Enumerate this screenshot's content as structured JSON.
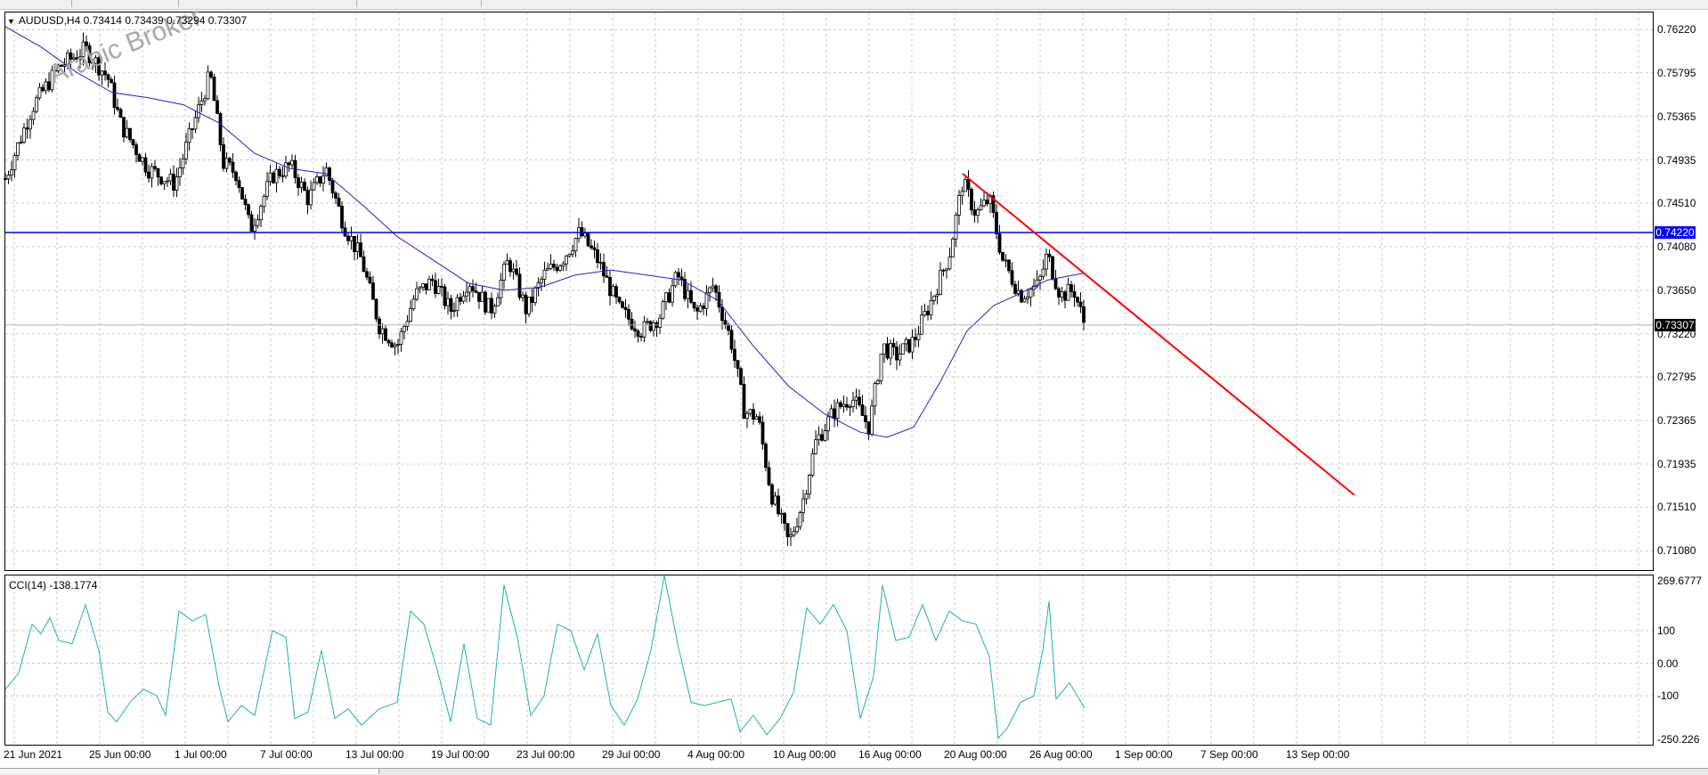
{
  "header": {
    "symbol_info": "AUDUSD,H4  0.73414 0.73439 0.73294 0.73307",
    "cci_label": "CCI(14) -138.1774"
  },
  "watermark": "Arabic Broker",
  "price_axis": [
    "0.76220",
    "0.75795",
    "0.75365",
    "0.74935",
    "0.74510",
    "0.74080",
    "0.73650",
    "0.73220",
    "0.72795",
    "0.72365",
    "0.71935",
    "0.71510",
    "0.71080"
  ],
  "tags": {
    "level": "0.74220",
    "current": "0.73307"
  },
  "cci_axis": [
    "269.6777",
    "100",
    "0.00",
    "-100",
    "-250.226"
  ],
  "date_axis": [
    "21 Jun 2021",
    "25 Jun 00:00",
    "1 Jul 00:00",
    "7 Jul 00:00",
    "13 Jul 00:00",
    "19 Jul 00:00",
    "23 Jul 00:00",
    "29 Jul 00:00",
    "4 Aug 00:00",
    "10 Aug 00:00",
    "16 Aug 00:00",
    "20 Aug 00:00",
    "26 Aug 00:00",
    "1 Sep 00:00",
    "7 Sep 00:00",
    "13 Sep 00:00"
  ],
  "colors": {
    "ma": "#1f1fd0",
    "level": "#0000ff",
    "trendline": "#ff0000",
    "cci": "#20b2aa",
    "grid": "#c8c8c8"
  },
  "chart_data": {
    "type": "candlestick",
    "symbol": "AUDUSD",
    "timeframe": "H4",
    "ohlc_last": {
      "open": 0.73414,
      "high": 0.73439,
      "low": 0.73294,
      "close": 0.73307
    },
    "close_path": [
      [
        0,
        0.7475
      ],
      [
        30,
        0.7545
      ],
      [
        60,
        0.7585
      ],
      [
        90,
        0.7603
      ],
      [
        115,
        0.7575
      ],
      [
        130,
        0.7528
      ],
      [
        160,
        0.7485
      ],
      [
        190,
        0.747
      ],
      [
        210,
        0.7525
      ],
      [
        230,
        0.7578
      ],
      [
        245,
        0.749
      ],
      [
        260,
        0.748
      ],
      [
        275,
        0.7425
      ],
      [
        300,
        0.7478
      ],
      [
        320,
        0.7488
      ],
      [
        340,
        0.7455
      ],
      [
        360,
        0.7485
      ],
      [
        380,
        0.743
      ],
      [
        400,
        0.7395
      ],
      [
        420,
        0.733
      ],
      [
        440,
        0.731
      ],
      [
        460,
        0.736
      ],
      [
        480,
        0.7375
      ],
      [
        500,
        0.7345
      ],
      [
        520,
        0.7375
      ],
      [
        545,
        0.7345
      ],
      [
        565,
        0.7395
      ],
      [
        585,
        0.7345
      ],
      [
        605,
        0.738
      ],
      [
        625,
        0.7395
      ],
      [
        645,
        0.7422
      ],
      [
        665,
        0.7395
      ],
      [
        690,
        0.7345
      ],
      [
        715,
        0.7325
      ],
      [
        735,
        0.734
      ],
      [
        755,
        0.738
      ],
      [
        775,
        0.734
      ],
      [
        795,
        0.737
      ],
      [
        815,
        0.7315
      ],
      [
        830,
        0.7245
      ],
      [
        845,
        0.724
      ],
      [
        860,
        0.7165
      ],
      [
        880,
        0.7115
      ],
      [
        895,
        0.7155
      ],
      [
        910,
        0.7215
      ],
      [
        930,
        0.7245
      ],
      [
        950,
        0.726
      ],
      [
        970,
        0.723
      ],
      [
        985,
        0.731
      ],
      [
        1000,
        0.73
      ],
      [
        1020,
        0.7315
      ],
      [
        1040,
        0.7355
      ],
      [
        1060,
        0.74
      ],
      [
        1075,
        0.7472
      ],
      [
        1090,
        0.744
      ],
      [
        1105,
        0.7455
      ],
      [
        1120,
        0.7395
      ],
      [
        1140,
        0.736
      ],
      [
        1160,
        0.737
      ],
      [
        1170,
        0.74
      ],
      [
        1185,
        0.736
      ],
      [
        1200,
        0.7365
      ],
      [
        1212,
        0.7331
      ]
    ],
    "moving_average": [
      [
        0,
        0.7625
      ],
      [
        40,
        0.7605
      ],
      [
        80,
        0.758
      ],
      [
        120,
        0.756
      ],
      [
        160,
        0.7555
      ],
      [
        200,
        0.7548
      ],
      [
        240,
        0.753
      ],
      [
        280,
        0.75
      ],
      [
        320,
        0.7485
      ],
      [
        360,
        0.748
      ],
      [
        400,
        0.745
      ],
      [
        440,
        0.7418
      ],
      [
        480,
        0.7395
      ],
      [
        520,
        0.7372
      ],
      [
        560,
        0.7365
      ],
      [
        600,
        0.7368
      ],
      [
        640,
        0.738
      ],
      [
        680,
        0.7385
      ],
      [
        720,
        0.738
      ],
      [
        760,
        0.7375
      ],
      [
        800,
        0.7355
      ],
      [
        840,
        0.731
      ],
      [
        880,
        0.727
      ],
      [
        920,
        0.7243
      ],
      [
        960,
        0.7225
      ],
      [
        990,
        0.722
      ],
      [
        1020,
        0.723
      ],
      [
        1050,
        0.7275
      ],
      [
        1080,
        0.7325
      ],
      [
        1110,
        0.735
      ],
      [
        1140,
        0.7362
      ],
      [
        1170,
        0.7375
      ],
      [
        1200,
        0.738
      ],
      [
        1212,
        0.7382
      ]
    ],
    "horizontal_level": 0.7422,
    "trendline": {
      "from": [
        1075,
        0.748
      ],
      "to": [
        1515,
        0.7163
      ]
    },
    "cci": [
      [
        0,
        -80
      ],
      [
        15,
        -30
      ],
      [
        30,
        120
      ],
      [
        40,
        90
      ],
      [
        50,
        140
      ],
      [
        60,
        70
      ],
      [
        75,
        60
      ],
      [
        90,
        180
      ],
      [
        105,
        40
      ],
      [
        115,
        -150
      ],
      [
        125,
        -180
      ],
      [
        140,
        -120
      ],
      [
        155,
        -80
      ],
      [
        170,
        -100
      ],
      [
        180,
        -160
      ],
      [
        195,
        160
      ],
      [
        210,
        130
      ],
      [
        225,
        150
      ],
      [
        240,
        -70
      ],
      [
        250,
        -180
      ],
      [
        265,
        -130
      ],
      [
        280,
        -160
      ],
      [
        300,
        100
      ],
      [
        315,
        80
      ],
      [
        325,
        -170
      ],
      [
        340,
        -150
      ],
      [
        355,
        40
      ],
      [
        370,
        -170
      ],
      [
        385,
        -140
      ],
      [
        400,
        -190
      ],
      [
        420,
        -140
      ],
      [
        440,
        -120
      ],
      [
        455,
        160
      ],
      [
        470,
        120
      ],
      [
        485,
        -20
      ],
      [
        500,
        -180
      ],
      [
        515,
        60
      ],
      [
        530,
        -170
      ],
      [
        545,
        -190
      ],
      [
        560,
        240
      ],
      [
        575,
        80
      ],
      [
        590,
        -160
      ],
      [
        605,
        -100
      ],
      [
        620,
        120
      ],
      [
        635,
        100
      ],
      [
        650,
        -20
      ],
      [
        665,
        90
      ],
      [
        680,
        -130
      ],
      [
        695,
        -190
      ],
      [
        710,
        -110
      ],
      [
        725,
        40
      ],
      [
        740,
        270
      ],
      [
        755,
        60
      ],
      [
        770,
        -120
      ],
      [
        785,
        -130
      ],
      [
        800,
        -120
      ],
      [
        815,
        -110
      ],
      [
        825,
        -210
      ],
      [
        840,
        -160
      ],
      [
        855,
        -220
      ],
      [
        870,
        -170
      ],
      [
        885,
        -90
      ],
      [
        900,
        170
      ],
      [
        915,
        120
      ],
      [
        930,
        180
      ],
      [
        945,
        100
      ],
      [
        960,
        -170
      ],
      [
        975,
        -40
      ],
      [
        985,
        240
      ],
      [
        1000,
        70
      ],
      [
        1015,
        80
      ],
      [
        1030,
        180
      ],
      [
        1045,
        70
      ],
      [
        1060,
        160
      ],
      [
        1075,
        130
      ],
      [
        1090,
        120
      ],
      [
        1105,
        20
      ],
      [
        1115,
        -230
      ],
      [
        1125,
        -200
      ],
      [
        1140,
        -120
      ],
      [
        1155,
        -100
      ],
      [
        1165,
        40
      ],
      [
        1172,
        190
      ],
      [
        1180,
        -110
      ],
      [
        1195,
        -60
      ],
      [
        1212,
        -138
      ]
    ],
    "price_range": [
      0.7089,
      0.7639
    ],
    "cci_range": [
      -250.226,
      269.6777
    ],
    "grid": true
  }
}
